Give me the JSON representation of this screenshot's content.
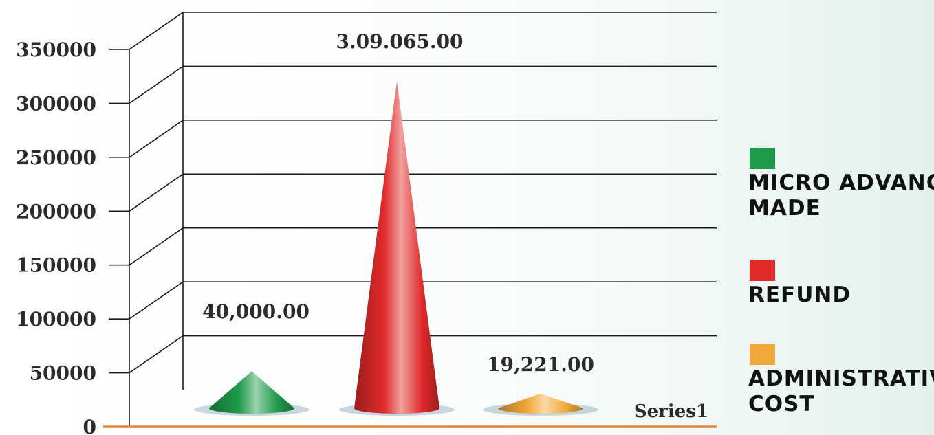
{
  "chart_data": {
    "type": "bar",
    "mark": "cone",
    "categories": [
      "MICRO ADVANCE MADE",
      "REFUND",
      "ADMINISTRATIVE COST"
    ],
    "series": [
      {
        "name": "Series1",
        "values": [
          40000,
          309065,
          19221
        ],
        "data_labels": [
          "40,000.00",
          "3.09.065.00",
          "19,221.00"
        ],
        "colors": [
          "#1f9a4a",
          "#e02a2a",
          "#f2a93b"
        ]
      }
    ],
    "y_ticks": [
      "0",
      "50000",
      "100000",
      "150000",
      "200000",
      "250000",
      "300000",
      "350000"
    ],
    "ylim": [
      0,
      350000
    ],
    "grid": true,
    "legend": {
      "position": "right",
      "items": [
        {
          "label": "MICRO ADVANCE MADE",
          "color": "#1f9a4a"
        },
        {
          "label": "REFUND",
          "color": "#e02a2a"
        },
        {
          "label": "ADMINISTRATIVE COST",
          "color": "#f2a93b"
        }
      ]
    },
    "title": "",
    "xlabel": "",
    "ylabel": ""
  }
}
